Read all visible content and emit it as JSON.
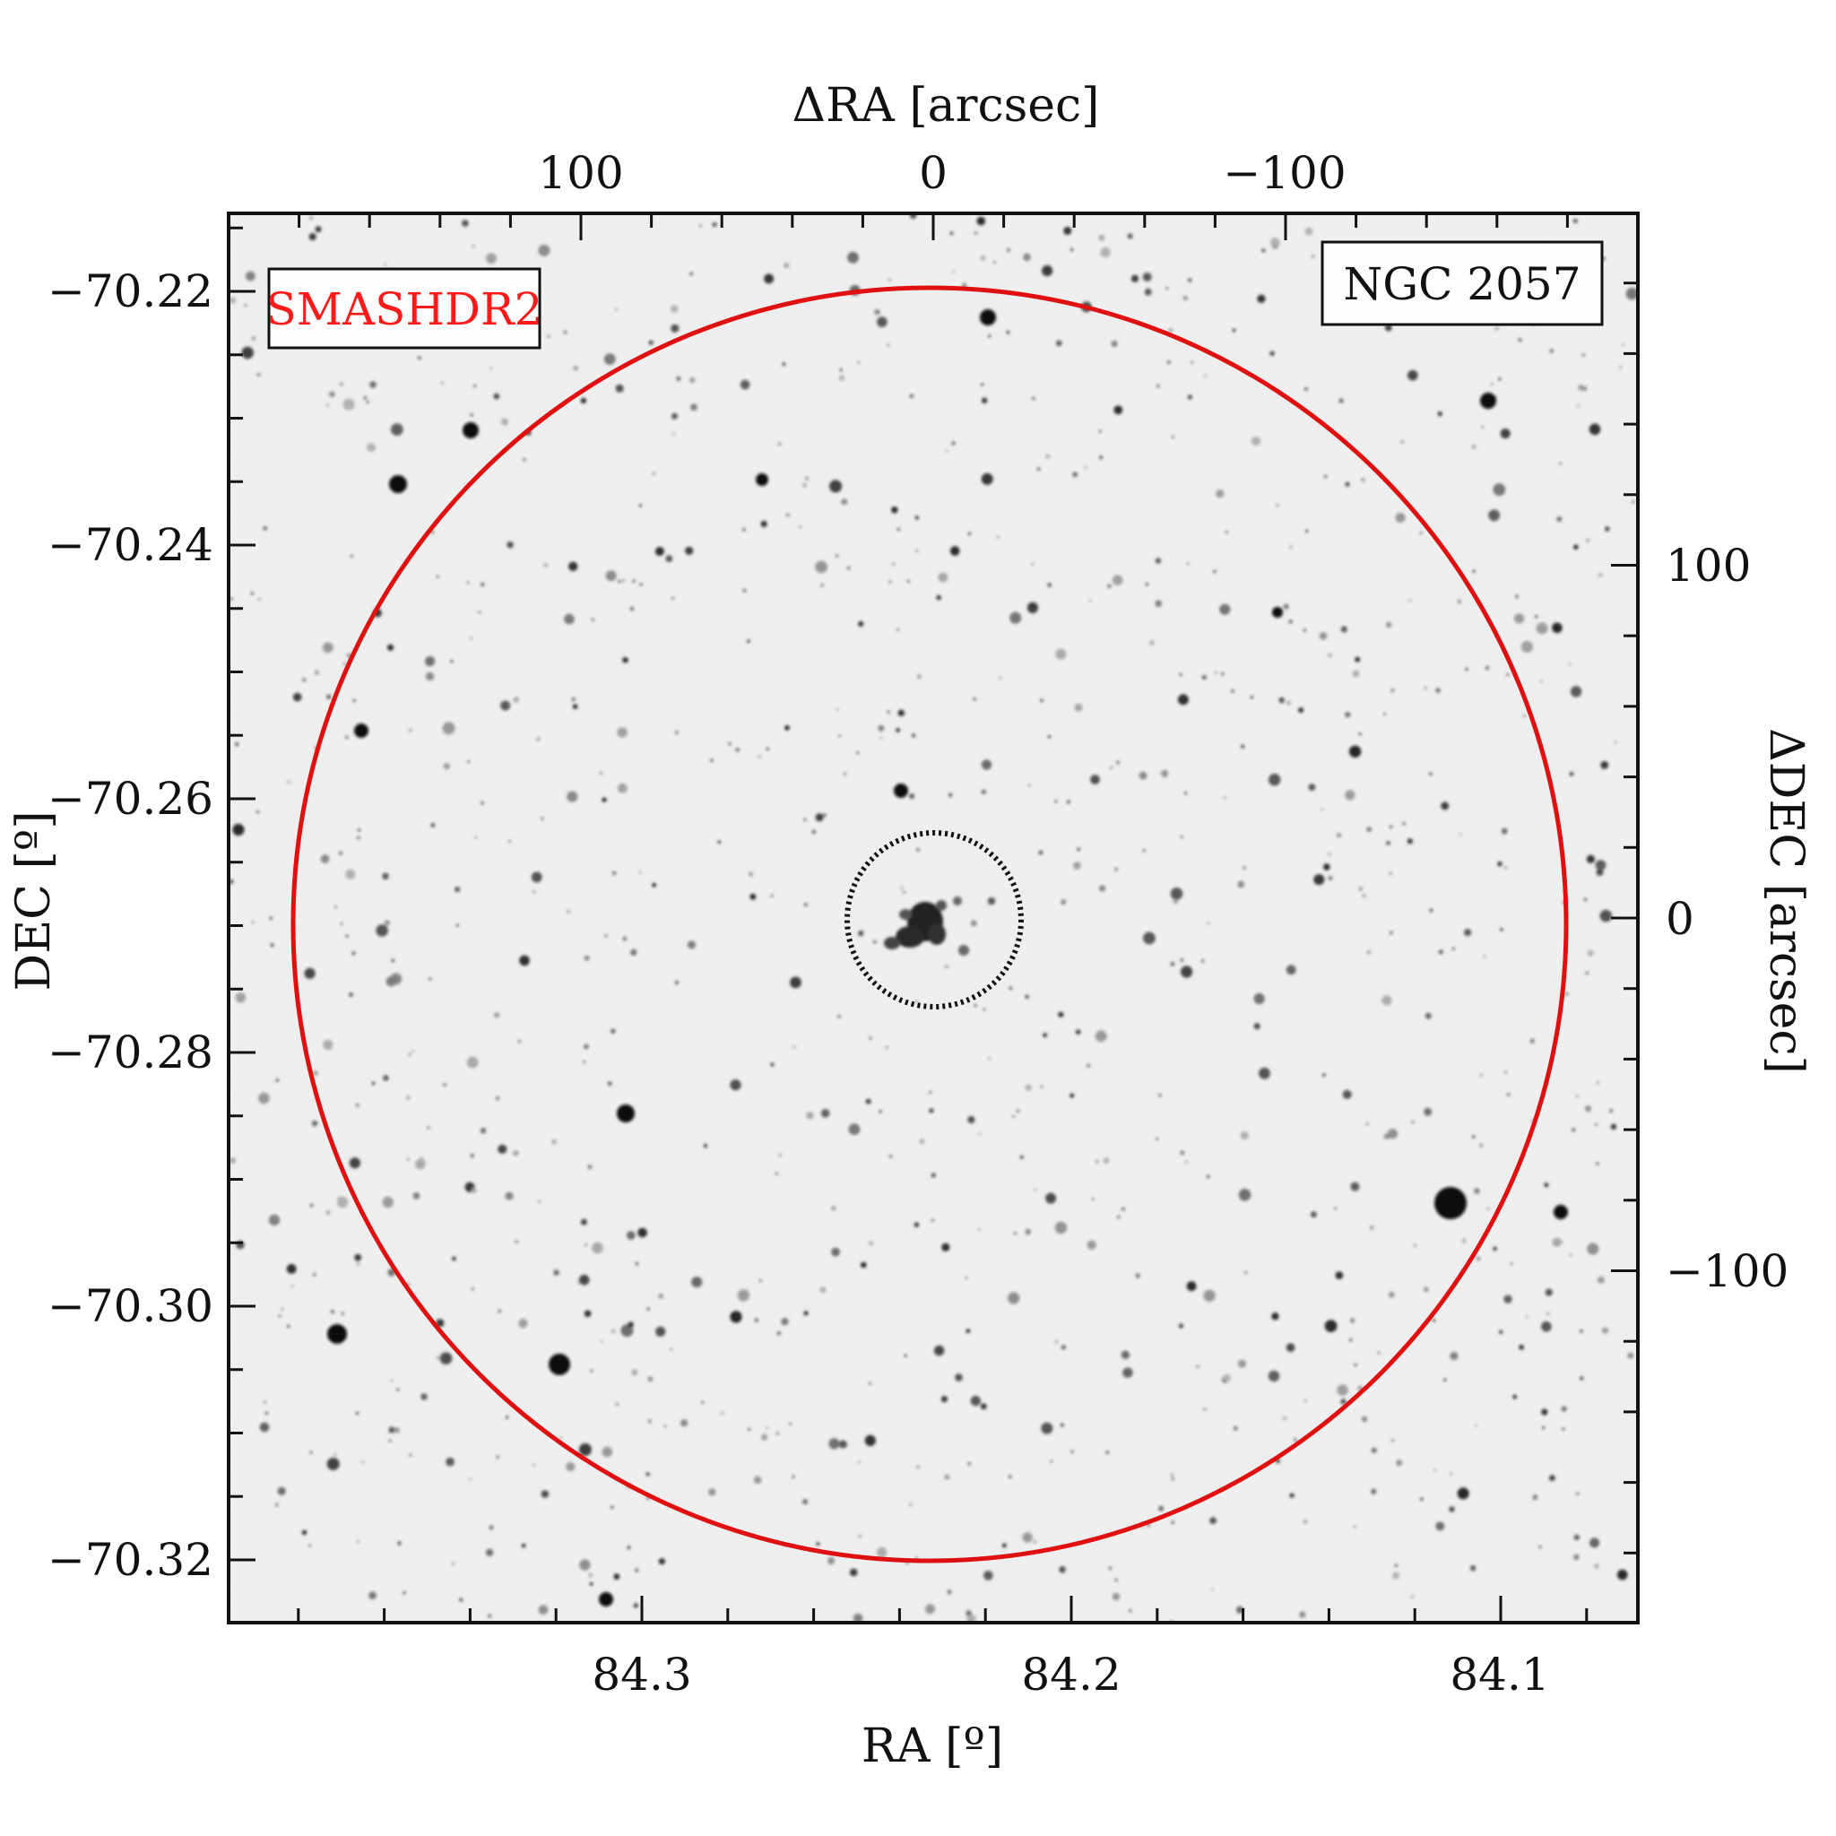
{
  "image": {
    "top_axis_title": "ΔRA [arcsec]",
    "bottom_axis_title": "RA [º]",
    "left_axis_title": "DEC [º]",
    "right_axis_title": "ΔDEC [arcsec]",
    "survey_label": "SMASHDR2",
    "object_label": "NGC 2057",
    "survey_label_color": "#ff1a1a",
    "outer_circle_color": "#e01010",
    "inner_circle_color": "#111111",
    "background_color": "#f1f1f1",
    "ra_ticks": [
      "84.3",
      "84.2",
      "84.1"
    ],
    "dec_ticks": [
      "−70.22",
      "−70.24",
      "−70.26",
      "−70.28",
      "−70.30",
      "−70.32"
    ],
    "dra_ticks": [
      "100",
      "0",
      "−100"
    ],
    "ddec_ticks": [
      "100",
      "0",
      "−100"
    ]
  }
}
